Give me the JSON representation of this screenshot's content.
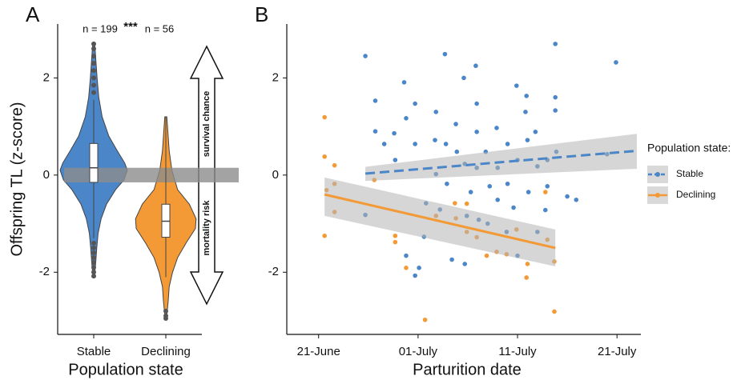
{
  "chart_data": [
    {
      "type": "violin",
      "label": "A",
      "ylabel": "Offspring TL (z-score)",
      "xlabel": "Population state",
      "categories": [
        "Stable",
        "Declining"
      ],
      "ylim": [
        -3.28,
        3.11
      ],
      "yticks": [
        -2,
        0,
        2
      ],
      "grid": false,
      "reference_band": [
        -0.15,
        0.15
      ],
      "reference_band_color": "#8c8c8c",
      "annotations": [
        "n = 199",
        "***",
        "n = 56"
      ],
      "arrow_labels": [
        "survival chance",
        "mortality risk"
      ],
      "violins": [
        {
          "color": "#4a86c8",
          "density_y": [
            2.7,
            2.4,
            2.0,
            1.6,
            1.2,
            0.8,
            0.5,
            0.25,
            0.1,
            -0.1,
            -0.3,
            -0.6,
            -0.9,
            -1.2,
            -1.5,
            -1.8,
            -2.1
          ],
          "density": [
            0.03,
            0.06,
            0.1,
            0.15,
            0.25,
            0.45,
            0.7,
            0.92,
            1.0,
            0.9,
            0.65,
            0.38,
            0.22,
            0.13,
            0.09,
            0.06,
            0.02
          ],
          "whisker_low": -1.3,
          "q1": -0.15,
          "median": 0.15,
          "q3": 0.65,
          "whisker_high": 1.55,
          "outliers": [
            1.7,
            1.85,
            2.0,
            2.15,
            2.3,
            2.45,
            2.6,
            2.7,
            -1.4,
            -1.5,
            -1.6,
            -1.7,
            -1.8,
            -1.9,
            -2.0,
            -2.08
          ]
        },
        {
          "color": "#f39a36",
          "density_y": [
            1.2,
            0.9,
            0.5,
            0.1,
            -0.3,
            -0.6,
            -0.9,
            -1.1,
            -1.4,
            -1.7,
            -2.0,
            -2.3,
            -2.6,
            -2.95
          ],
          "density": [
            0.03,
            0.06,
            0.1,
            0.18,
            0.35,
            0.7,
            0.9,
            0.88,
            0.6,
            0.35,
            0.2,
            0.1,
            0.07,
            0.02
          ],
          "whisker_low": -2.1,
          "q1": -1.28,
          "median": -0.95,
          "q3": -0.6,
          "whisker_high": 1.2,
          "outliers": [
            -2.8,
            -2.9,
            -2.95
          ]
        }
      ]
    },
    {
      "type": "scatter",
      "label": "B",
      "xlabel": "Parturition date",
      "xlim": [
        168.8,
        204.4
      ],
      "xticks": [
        {
          "value": 172,
          "label": "21-June"
        },
        {
          "value": 182,
          "label": "01-July"
        },
        {
          "value": 192,
          "label": "11-July"
        },
        {
          "value": 202,
          "label": "21-July"
        }
      ],
      "ylim": [
        -3.28,
        3.11
      ],
      "yticks": [
        -2,
        0,
        2
      ],
      "grid": false,
      "legend": "right",
      "legend_title": "Population state:",
      "series": [
        {
          "name": "Stable",
          "color": "#4a86c8",
          "line_style": "dashed",
          "x": [
            176.7,
            177.7,
            177.7,
            176.7,
            178.6,
            179.6,
            179.7,
            180.6,
            180.8,
            180.8,
            181.7,
            181.7,
            181.7,
            182.6,
            182.8,
            183.8,
            183.7,
            183.8,
            184.7,
            184.8,
            184.9,
            185.4,
            185.8,
            185.9,
            186.6,
            186.7,
            186.9,
            187.3,
            187.8,
            187.9,
            187.9,
            187.9,
            188.1,
            188.8,
            189.0,
            189.9,
            190.0,
            190.0,
            191.0,
            191.0,
            190.9,
            191.9,
            192.0,
            192.0,
            192.8,
            192.9,
            193.0,
            193.1,
            193.8,
            194.0,
            194.0,
            195.0,
            195.0,
            195.8,
            195.8,
            195.8,
            195.9,
            197.0,
            197.9,
            201.9,
            201.0,
            194.8,
            186.7,
            182.1,
            189.2,
            191.6,
            184.2
          ],
          "values": [
            2.45,
            1.53,
            0.9,
            -0.82,
            0.64,
            0.86,
            0.31,
            1.91,
            1.17,
            -1.66,
            1.47,
            -2.07,
            0.64,
            -1.27,
            -0.58,
            1.3,
            0.72,
            0.02,
            2.49,
            0.64,
            -0.18,
            -1.74,
            1.05,
            0.48,
            2.0,
            0.23,
            -0.84,
            -0.35,
            2.25,
            1.47,
            0.89,
            0.15,
            -0.92,
            0.48,
            -1.0,
            0.97,
            0.15,
            -0.51,
            0.64,
            -0.18,
            -1.17,
            1.84,
            0.31,
            -1.66,
            1.3,
            1.63,
            0.72,
            -0.35,
            0.89,
            0.18,
            -1.17,
            0.31,
            -0.23,
            2.7,
            1.6,
            1.33,
            0.48,
            -0.44,
            -0.51,
            2.32,
            0.43,
            -0.72,
            -1.83,
            -1.91,
            -0.23,
            -0.67,
            -0.71
          ],
          "fit_x": [
            176.7,
            204.0
          ],
          "fit_y": [
            0.03,
            0.5
          ],
          "fit_lower": [
            -0.12,
            0.13
          ],
          "fit_upper": [
            0.17,
            0.85
          ]
        },
        {
          "name": "Declining",
          "color": "#f39a36",
          "line_style": "solid",
          "x": [
            172.6,
            172.6,
            172.6,
            172.8,
            173.6,
            173.6,
            173.6,
            177.6,
            179.7,
            179.7,
            180.8,
            182.7,
            183.8,
            185.7,
            185.8,
            186.9,
            186.9,
            187.9,
            188.9,
            189.9,
            190.9,
            193.0,
            192.9,
            194.8,
            195.0,
            195.7,
            195.7,
            191.9
          ],
          "values": [
            1.19,
            0.38,
            -1.25,
            -0.31,
            0.2,
            -0.76,
            -0.18,
            -0.1,
            -1.25,
            -1.38,
            -1.91,
            -2.98,
            -0.84,
            -0.58,
            -0.89,
            -0.59,
            -1.17,
            -1.28,
            -1.66,
            -1.58,
            -1.63,
            -1.83,
            -2.11,
            -0.35,
            -1.33,
            -1.78,
            -2.81,
            -1.12
          ],
          "fit_x": [
            172.6,
            195.8
          ],
          "fit_y": [
            -0.4,
            -1.5
          ],
          "fit_lower": [
            -0.84,
            -1.88
          ],
          "fit_upper": [
            -0.05,
            -1.12
          ]
        }
      ]
    }
  ]
}
